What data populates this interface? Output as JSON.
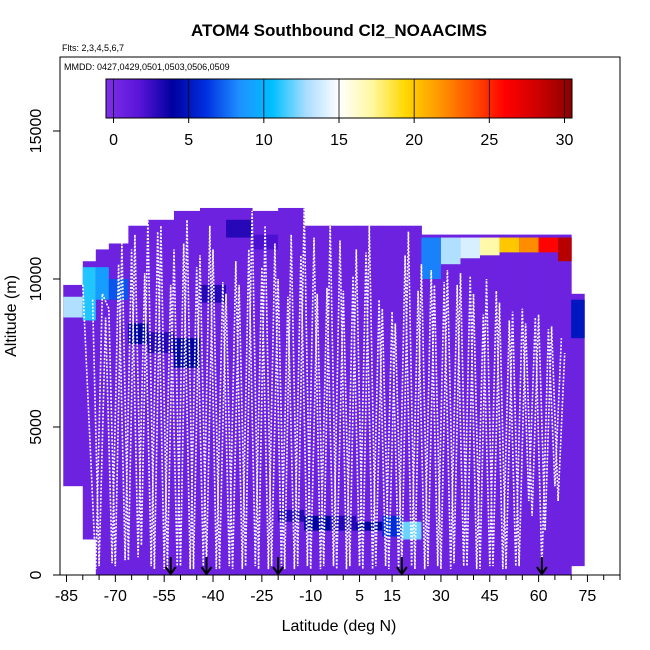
{
  "chart_data": {
    "type": "heatmap",
    "title": "ATOM4 Southbound Cl2_NOAACIMS",
    "flights_label": "Flts: 2,3,4,5,6,7",
    "dates_label": "MMDD: 0427,0429,0501,0503,0506,0509",
    "xlabel": "Latitude (deg N)",
    "ylabel": "Altitude (m)",
    "xlim": [
      -87,
      85
    ],
    "ylim": [
      0,
      17500
    ],
    "x_ticks": [
      -85,
      -70,
      -55,
      -40,
      -25,
      -10,
      5,
      15,
      30,
      45,
      60,
      75
    ],
    "x_minor_ticks": [
      -80,
      -75,
      -65,
      -60,
      -50,
      -45,
      -35,
      -30,
      -20,
      -15,
      -5,
      0,
      10,
      20,
      25,
      35,
      40,
      50,
      55,
      65,
      70,
      80,
      85
    ],
    "y_ticks": [
      0,
      5000,
      10000,
      15000
    ],
    "colorbar": {
      "min": -0.5,
      "max": 30.5,
      "ticks": [
        0,
        5,
        10,
        15,
        20,
        25,
        30
      ],
      "colors": [
        "#7f30e8",
        "#5a14d8",
        "#0000a0",
        "#0030e0",
        "#1e90ff",
        "#00bfff",
        "#a8dcff",
        "#ffffff",
        "#fff8a0",
        "#ffd700",
        "#ff9900",
        "#ff5000",
        "#ff0000",
        "#cc0000",
        "#8b0000"
      ]
    },
    "arrow_latitudes": [
      -53,
      -42,
      -20,
      18,
      61
    ],
    "field_columns": [
      {
        "lat": -86,
        "top": 9800,
        "bottom": 3000,
        "hi_top": 9400,
        "hi_bottom": 8700,
        "hi": 13
      },
      {
        "lat": -80,
        "top": 10600,
        "bottom": 1200,
        "hi_top": 10400,
        "hi_bottom": 8600,
        "hi": 11
      },
      {
        "lat": -76,
        "top": 11000,
        "bottom": 0,
        "hi_top": 10400,
        "hi_bottom": 9300,
        "hi": 9
      },
      {
        "lat": -72,
        "top": 11200,
        "bottom": 0,
        "hi_top": 10000,
        "hi_bottom": 9300,
        "hi": 7
      },
      {
        "lat": -66,
        "top": 11800,
        "bottom": 0,
        "hi_top": 8500,
        "hi_bottom": 7800,
        "hi": 4
      },
      {
        "lat": -60,
        "top": 12000,
        "bottom": 0,
        "hi_top": 8200,
        "hi_bottom": 7500,
        "hi": 3
      },
      {
        "lat": -52,
        "top": 12300,
        "bottom": 0,
        "hi_top": 8000,
        "hi_bottom": 7000,
        "hi": 4
      },
      {
        "lat": -44,
        "top": 12400,
        "bottom": 0,
        "hi_top": 9800,
        "hi_bottom": 9200,
        "hi": 3
      },
      {
        "lat": -36,
        "top": 12400,
        "bottom": 0,
        "hi_top": 12000,
        "hi_bottom": 11400,
        "hi": 3
      },
      {
        "lat": -28,
        "top": 12300,
        "bottom": 0,
        "hi_top": 11500,
        "hi_bottom": 11000,
        "hi": 2
      },
      {
        "lat": -20,
        "top": 12400,
        "bottom": 0,
        "hi_top": 2200,
        "hi_bottom": 1800,
        "hi": 3
      },
      {
        "lat": -12,
        "top": 11800,
        "bottom": 0,
        "hi_top": 2000,
        "hi_bottom": 1500,
        "hi": 4
      },
      {
        "lat": -4,
        "top": 11800,
        "bottom": 0,
        "hi_top": 2000,
        "hi_bottom": 1500,
        "hi": 3
      },
      {
        "lat": 4,
        "top": 11800,
        "bottom": 0,
        "hi_top": 1800,
        "hi_bottom": 1500,
        "hi": 4
      },
      {
        "lat": 12,
        "top": 11800,
        "bottom": 0,
        "hi_top": 2000,
        "hi_bottom": 1300,
        "hi": 6
      },
      {
        "lat": 18,
        "top": 11800,
        "bottom": 0,
        "hi_top": 1800,
        "hi_bottom": 1200,
        "hi": 12
      },
      {
        "lat": 24,
        "top": 11500,
        "bottom": 0,
        "hi_top": 11400,
        "hi_bottom": 10000,
        "hi": 8
      },
      {
        "lat": 30,
        "top": 11500,
        "bottom": 0,
        "hi_top": 11400,
        "hi_bottom": 10500,
        "hi": 13
      },
      {
        "lat": 36,
        "top": 11500,
        "bottom": 0,
        "hi_top": 11400,
        "hi_bottom": 10700,
        "hi": 14
      },
      {
        "lat": 42,
        "top": 11500,
        "bottom": 0,
        "hi_top": 11400,
        "hi_bottom": 10800,
        "hi": 17
      },
      {
        "lat": 48,
        "top": 11500,
        "bottom": 0,
        "hi_top": 11400,
        "hi_bottom": 10900,
        "hi": 20
      },
      {
        "lat": 54,
        "top": 11500,
        "bottom": 0,
        "hi_top": 11400,
        "hi_bottom": 10900,
        "hi": 22
      },
      {
        "lat": 60,
        "top": 11500,
        "bottom": 0,
        "hi_top": 11400,
        "hi_bottom": 10900,
        "hi": 26
      },
      {
        "lat": 66,
        "top": 11500,
        "bottom": 0,
        "hi_top": 11400,
        "hi_bottom": 10600,
        "hi": 29
      },
      {
        "lat": 70,
        "top": 9500,
        "bottom": 300,
        "hi_top": 9300,
        "hi_bottom": 8000,
        "hi": 5
      }
    ],
    "flight_profiles": [
      [
        [
          -80,
          9800
        ],
        [
          -76,
          200
        ],
        [
          -74,
          9500
        ],
        [
          -72,
          9000
        ],
        [
          -70,
          300
        ],
        [
          -68,
          11200
        ],
        [
          -66,
          500
        ],
        [
          -64,
          11500
        ],
        [
          -62,
          1000
        ],
        [
          -60,
          12000
        ],
        [
          -58,
          200
        ],
        [
          -56,
          11800
        ],
        [
          -54,
          200
        ],
        [
          -52,
          11000
        ],
        [
          -50,
          300
        ],
        [
          -48,
          12000
        ],
        [
          -46,
          200
        ],
        [
          -44,
          10800
        ],
        [
          -42,
          300
        ],
        [
          -40,
          11000
        ],
        [
          -38,
          200
        ],
        [
          -36,
          9500
        ],
        [
          -34,
          200
        ],
        [
          -32,
          9800
        ],
        [
          -30,
          300
        ],
        [
          -28,
          12300
        ],
        [
          -26,
          200
        ],
        [
          -24,
          11800
        ],
        [
          -22,
          300
        ],
        [
          -20,
          10000
        ],
        [
          -18,
          200
        ],
        [
          -16,
          11500
        ],
        [
          -14,
          300
        ],
        [
          -12,
          12400
        ],
        [
          -10,
          200
        ],
        [
          -8,
          9500
        ],
        [
          -6,
          300
        ],
        [
          -4,
          11800
        ],
        [
          -2,
          200
        ],
        [
          0,
          9600
        ],
        [
          2,
          300
        ],
        [
          4,
          11000
        ],
        [
          6,
          200
        ],
        [
          8,
          11800
        ],
        [
          10,
          300
        ],
        [
          12,
          9000
        ],
        [
          14,
          200
        ],
        [
          16,
          8500
        ],
        [
          18,
          300
        ],
        [
          20,
          11600
        ],
        [
          22,
          200
        ],
        [
          24,
          10500
        ],
        [
          26,
          300
        ],
        [
          28,
          9800
        ],
        [
          30,
          200
        ],
        [
          32,
          10300
        ],
        [
          34,
          400
        ],
        [
          36,
          10200
        ],
        [
          38,
          300
        ],
        [
          40,
          9500
        ],
        [
          42,
          200
        ],
        [
          44,
          10000
        ],
        [
          46,
          300
        ],
        [
          48,
          9200
        ],
        [
          50,
          200
        ],
        [
          52,
          8900
        ],
        [
          54,
          300
        ],
        [
          56,
          8500
        ],
        [
          58,
          2000
        ],
        [
          60,
          8800
        ],
        [
          62,
          1500
        ],
        [
          64,
          8400
        ],
        [
          66,
          2500
        ],
        [
          68,
          7500
        ]
      ],
      [
        [
          -77,
          9300
        ],
        [
          -75,
          300
        ],
        [
          -73,
          8700
        ],
        [
          -71,
          400
        ],
        [
          -69,
          10500
        ],
        [
          -67,
          500
        ],
        [
          -65,
          11000
        ],
        [
          -63,
          600
        ],
        [
          -61,
          10200
        ],
        [
          -59,
          300
        ],
        [
          -57,
          11600
        ],
        [
          -55,
          200
        ],
        [
          -53,
          9800
        ],
        [
          -51,
          300
        ],
        [
          -49,
          11200
        ],
        [
          -47,
          200
        ],
        [
          -45,
          10400
        ],
        [
          -43,
          300
        ],
        [
          -41,
          11800
        ],
        [
          -39,
          200
        ],
        [
          -37,
          9900
        ],
        [
          -35,
          300
        ],
        [
          -33,
          10600
        ],
        [
          -31,
          200
        ],
        [
          -29,
          11000
        ],
        [
          -27,
          300
        ],
        [
          -25,
          10400
        ],
        [
          -23,
          200
        ],
        [
          -21,
          11200
        ],
        [
          -19,
          300
        ],
        [
          -17,
          9400
        ],
        [
          -15,
          200
        ],
        [
          -13,
          10800
        ],
        [
          -11,
          300
        ],
        [
          -9,
          11400
        ],
        [
          -7,
          200
        ],
        [
          -5,
          9700
        ],
        [
          -3,
          300
        ],
        [
          -1,
          11300
        ],
        [
          1,
          200
        ],
        [
          3,
          10100
        ],
        [
          5,
          300
        ],
        [
          7,
          10900
        ],
        [
          9,
          200
        ],
        [
          11,
          9300
        ],
        [
          13,
          300
        ],
        [
          15,
          8900
        ],
        [
          17,
          200
        ],
        [
          19,
          10800
        ],
        [
          21,
          300
        ],
        [
          23,
          9600
        ],
        [
          25,
          200
        ],
        [
          27,
          10300
        ],
        [
          29,
          300
        ],
        [
          31,
          9900
        ],
        [
          33,
          200
        ],
        [
          35,
          9800
        ],
        [
          37,
          300
        ],
        [
          39,
          10100
        ],
        [
          41,
          200
        ],
        [
          43,
          8800
        ],
        [
          45,
          300
        ],
        [
          47,
          9600
        ],
        [
          49,
          200
        ],
        [
          51,
          8600
        ],
        [
          53,
          300
        ],
        [
          55,
          9000
        ],
        [
          57,
          2500
        ],
        [
          59,
          8700
        ],
        [
          61,
          200
        ],
        [
          63,
          8300
        ],
        [
          65,
          3000
        ],
        [
          67,
          8000
        ]
      ]
    ]
  }
}
